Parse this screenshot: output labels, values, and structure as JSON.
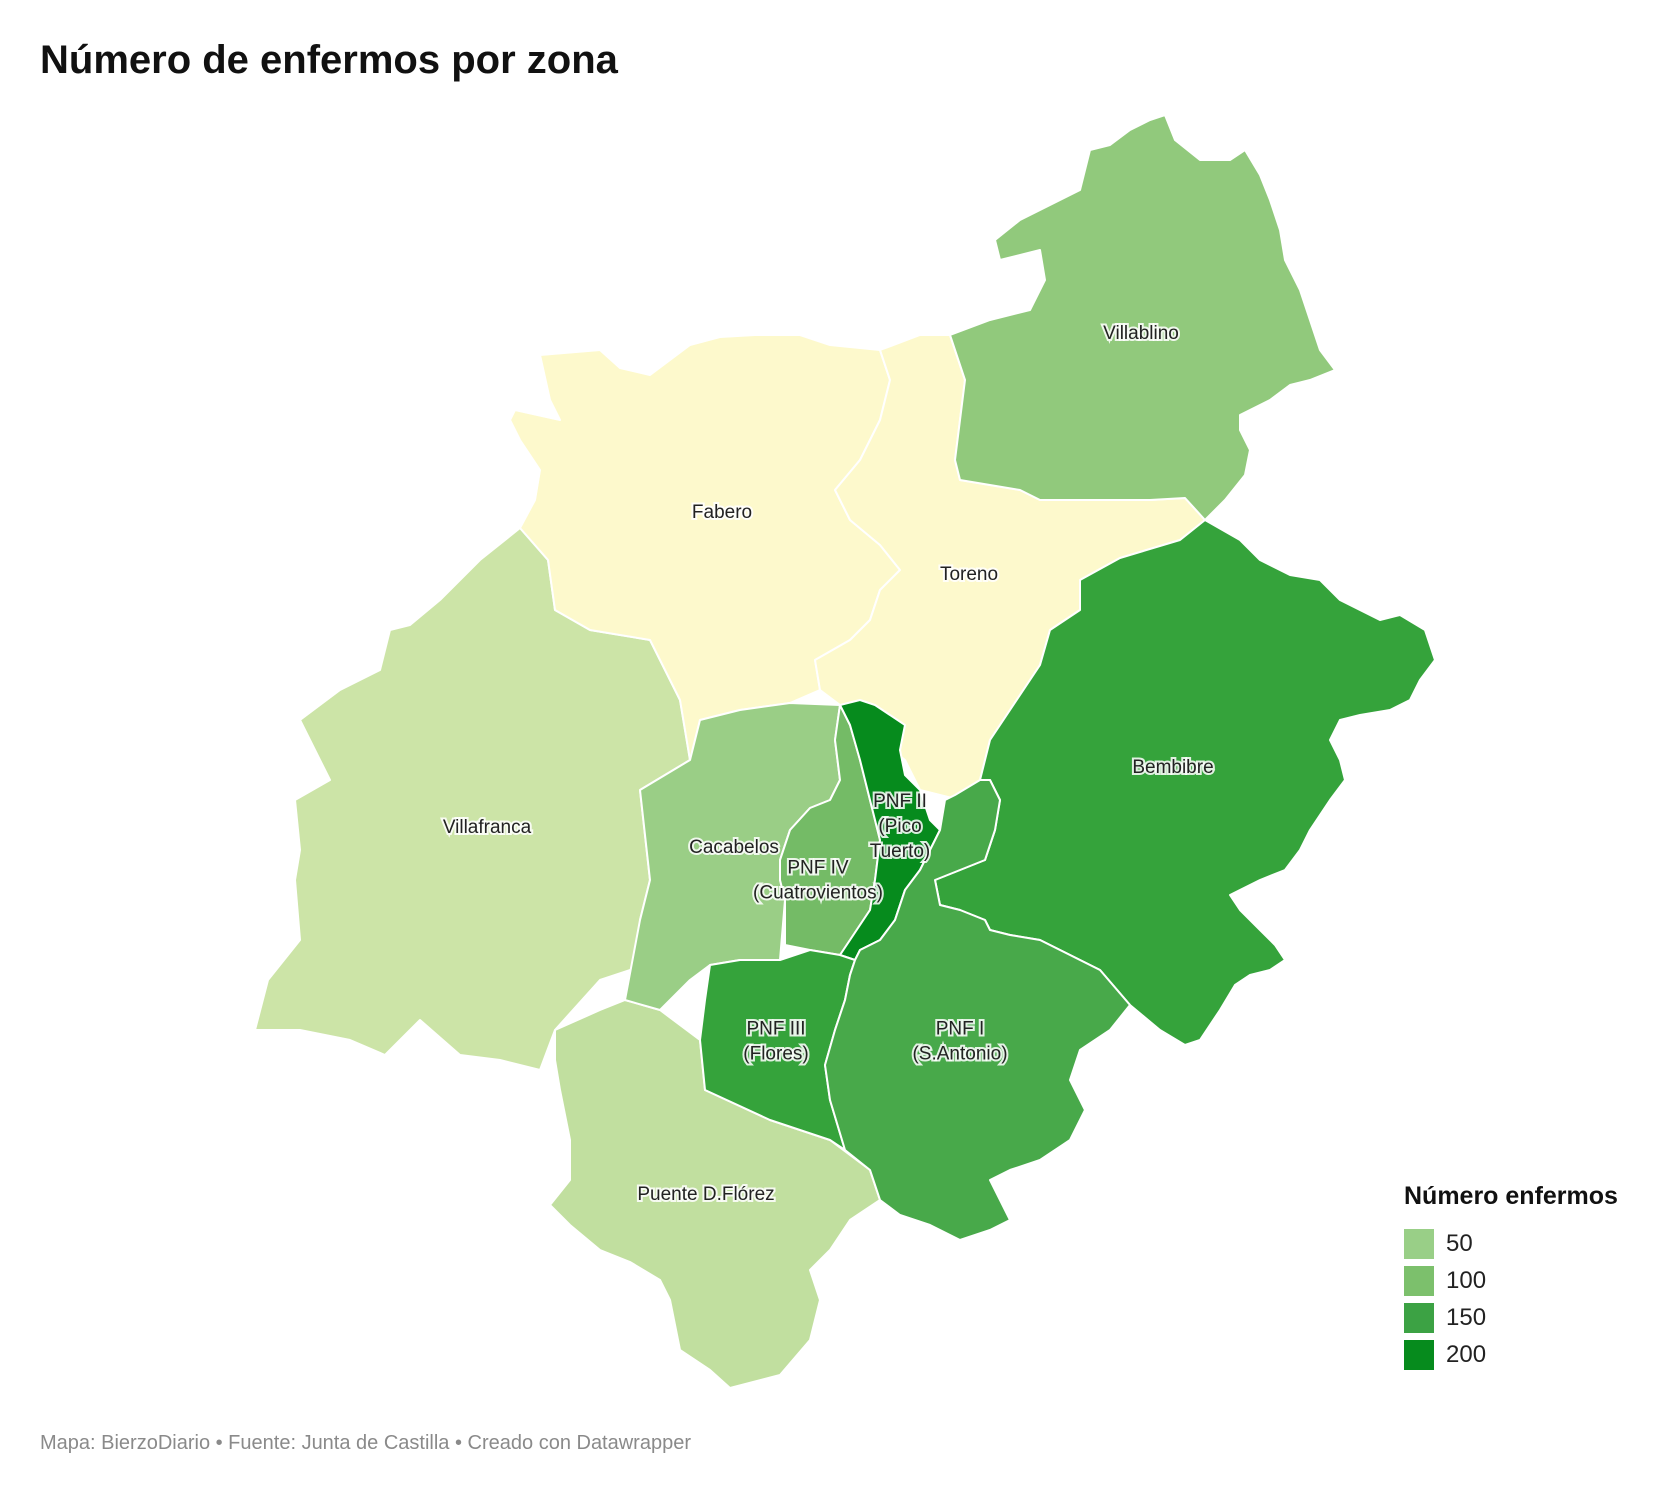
{
  "title": "Número de enfermos por zona",
  "footer": "Mapa: BierzoDiario • Fuente: Junta de Castilla • Creado con Datawrapper",
  "legend": {
    "title": "Número enfermos",
    "items": [
      {
        "label": "50",
        "color": "#99cf87"
      },
      {
        "label": "100",
        "color": "#7cc06c"
      },
      {
        "label": "150",
        "color": "#3ca244"
      },
      {
        "label": "200",
        "color": "#068b1d"
      }
    ]
  },
  "regions": [
    {
      "id": "villafranca",
      "label": [
        "Villafranca"
      ],
      "color": "#cce4a7"
    },
    {
      "id": "puente",
      "label": [
        "Puente D.Flórez"
      ],
      "color": "#c1df9f"
    },
    {
      "id": "fabero",
      "label": [
        "Fabero"
      ],
      "color": "#fdf9cc"
    },
    {
      "id": "toreno",
      "label": [
        "Toreno"
      ],
      "color": "#fdf9cc"
    },
    {
      "id": "villablino",
      "label": [
        "Villablino"
      ],
      "color": "#91c97c"
    },
    {
      "id": "bembibre",
      "label": [
        "Bembibre"
      ],
      "color": "#35a33b"
    },
    {
      "id": "cacabelos",
      "label": [
        "Cacabelos"
      ],
      "color": "#9ace86"
    },
    {
      "id": "pnf4",
      "label": [
        "PNF IV",
        "(Cuatrovientos)"
      ],
      "color": "#74bb66"
    },
    {
      "id": "pnf2",
      "label": [
        "PNF II",
        "(Pico",
        "Tuerto)"
      ],
      "color": "#068b1d"
    },
    {
      "id": "pnf3",
      "label": [
        "PNF III",
        "(Flores)"
      ],
      "color": "#35a33b"
    },
    {
      "id": "pnf1",
      "label": [
        "PNF I",
        "(S.Antonio)"
      ],
      "color": "#48a94a"
    }
  ]
}
